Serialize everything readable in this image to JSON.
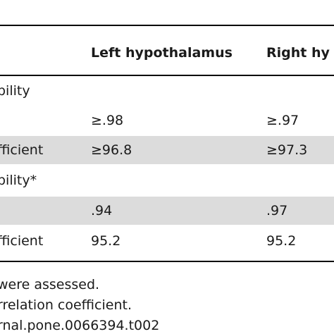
{
  "table": {
    "header": {
      "col1": "Left hypothalamus",
      "col2": "Right hy"
    },
    "rows": [
      {
        "label": "bility",
        "left": "",
        "right": "",
        "shaded": false
      },
      {
        "label": "",
        "left": "≥.98",
        "right": "≥.97",
        "shaded": false
      },
      {
        "label": "fficient",
        "left": "≥96.8",
        "right": "≥97.3",
        "shaded": true
      },
      {
        "label": "bility*",
        "left": "",
        "right": "",
        "shaded": false
      },
      {
        "label": "",
        "left": ".94",
        "right": ".97",
        "shaded": true
      },
      {
        "label": "fficient",
        "left": "95.2",
        "right": "95.2",
        "shaded": false
      }
    ]
  },
  "footnotes": [
    "were assessed.",
    "rrelation coefficient.",
    "rnal.pone.0066394.t002"
  ]
}
